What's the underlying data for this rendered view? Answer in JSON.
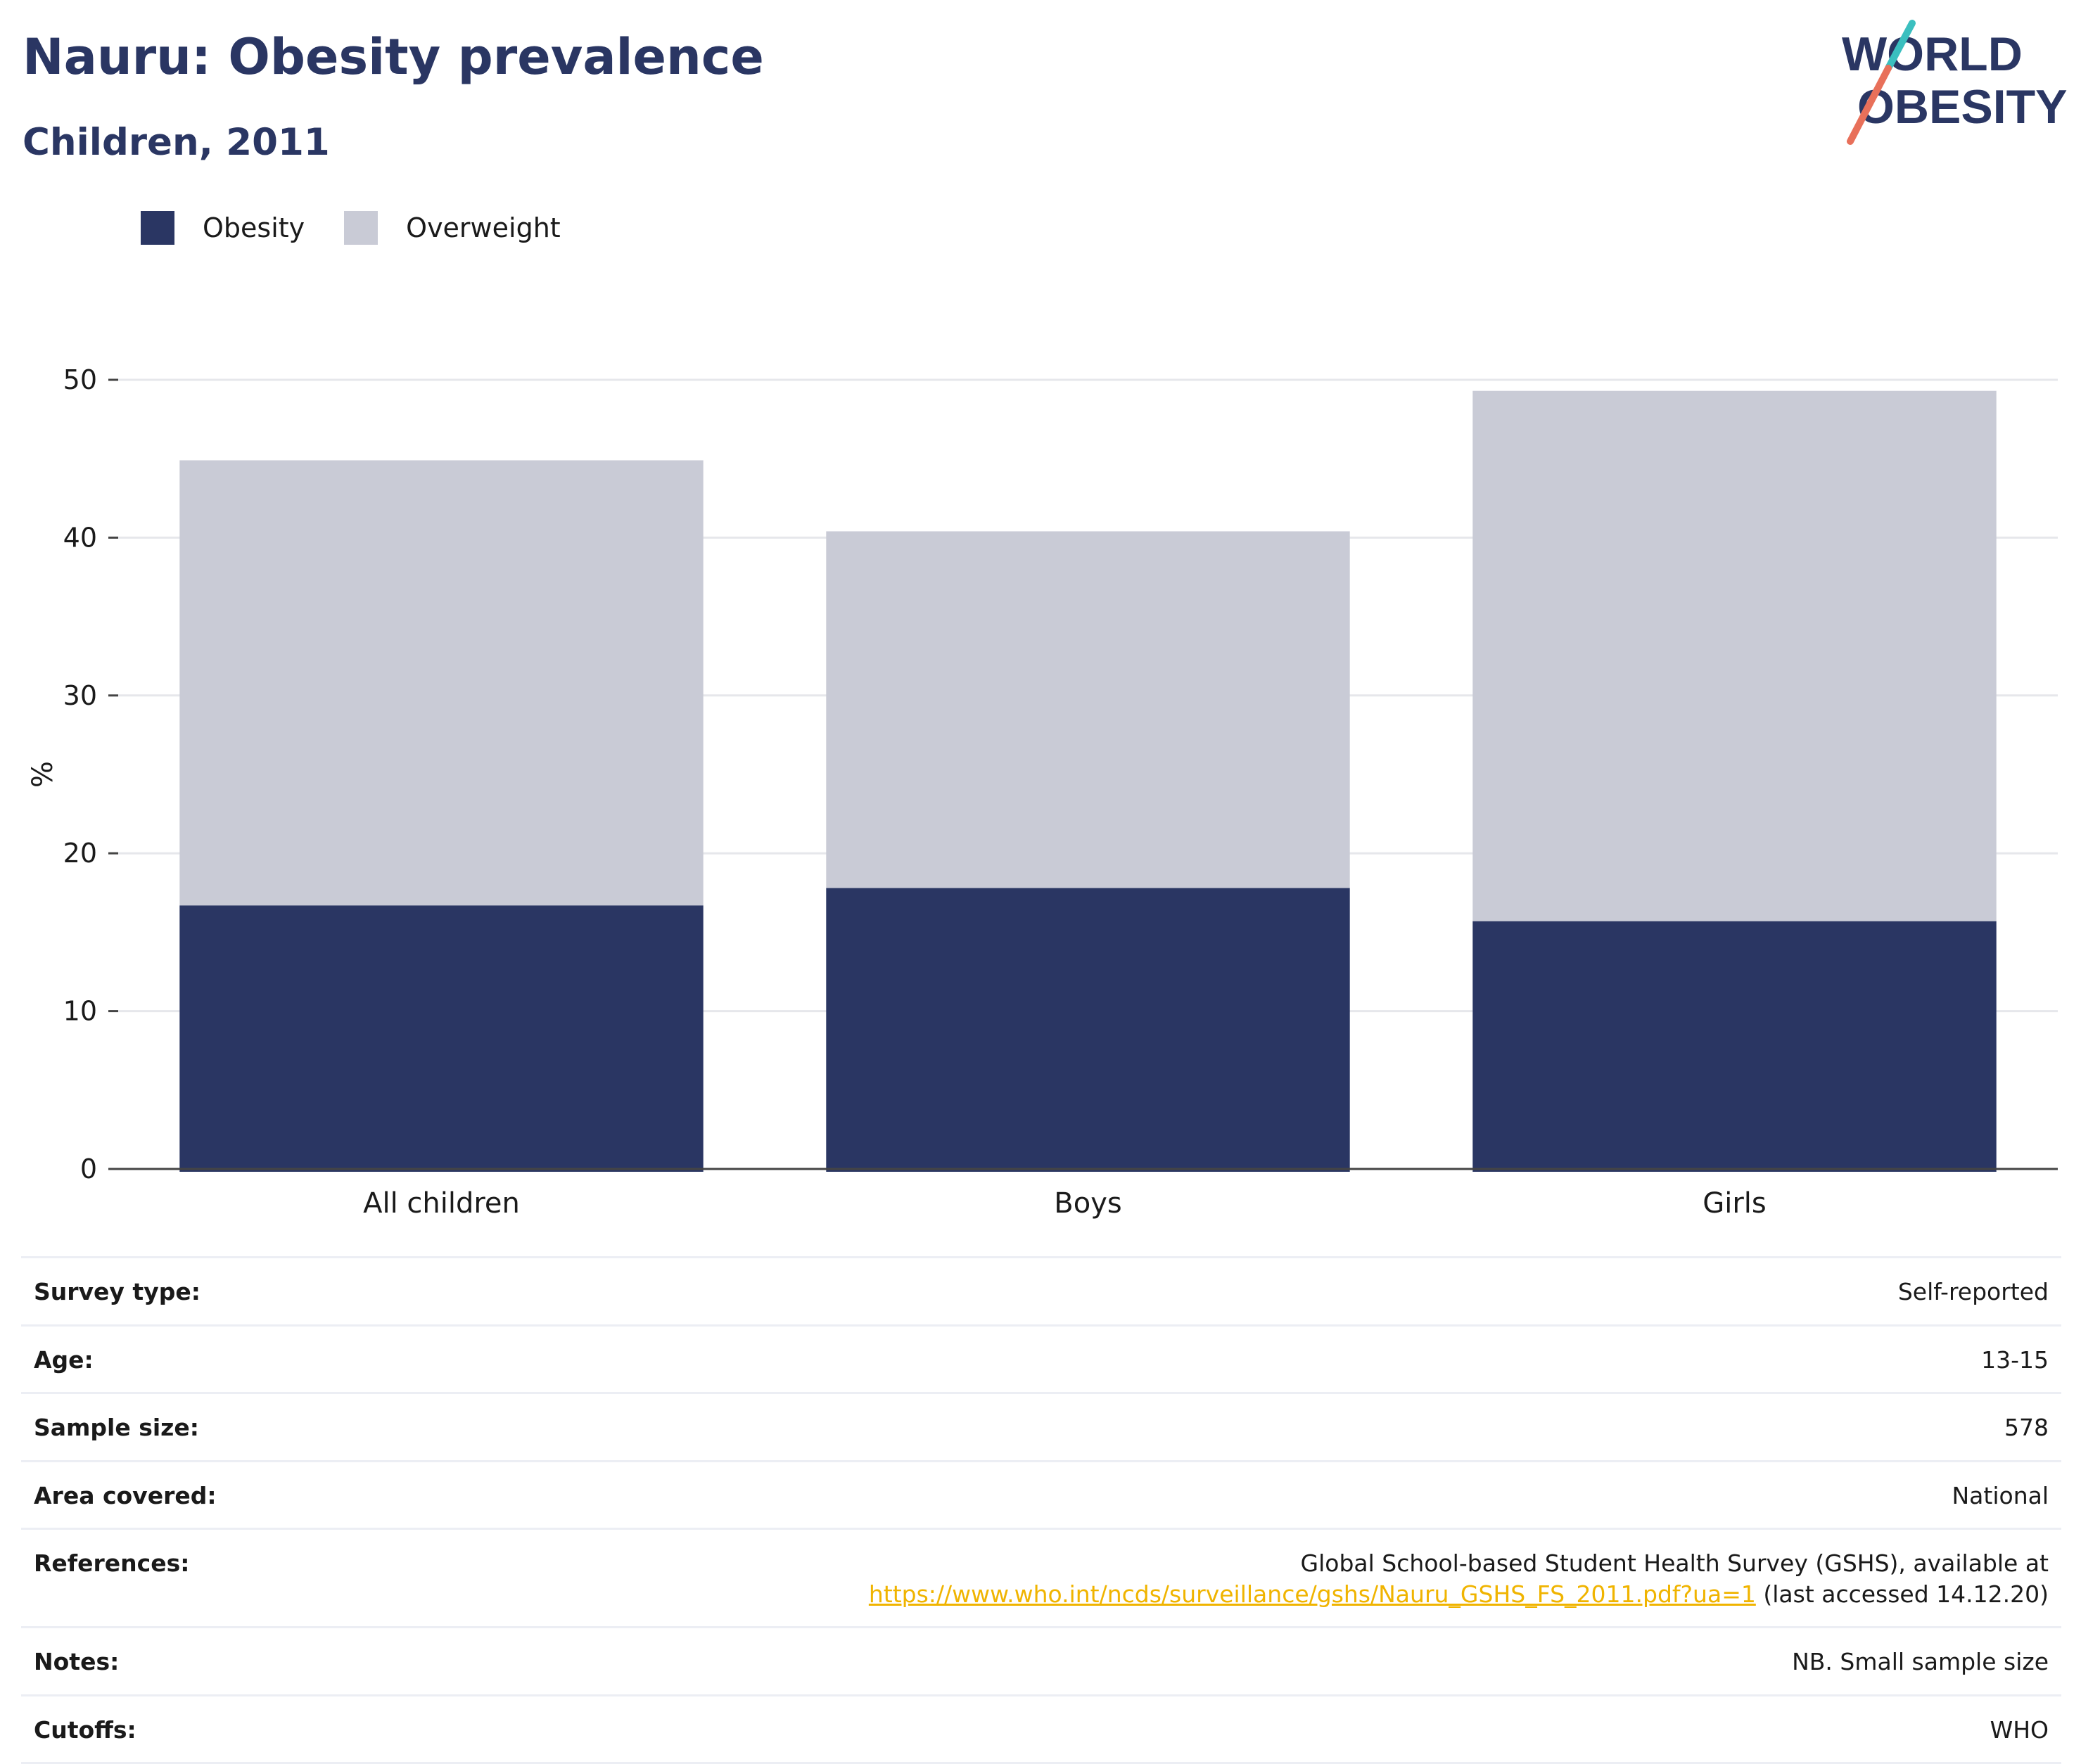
{
  "header": {
    "title": "Nauru: Obesity prevalence",
    "subtitle": "Children, 2011"
  },
  "logo": {
    "line1": "WORLD",
    "line2": "OBESITY",
    "colors": {
      "text": "#2a3663",
      "slash_top": "#3bbfbf",
      "slash_bottom": "#e8705a"
    }
  },
  "colors": {
    "obesity": "#2a3663",
    "overweight": "#c9cbd6",
    "grid": "#e6e7eb",
    "axis": "#444444",
    "link": "#f0b400"
  },
  "chart_data": {
    "type": "bar",
    "stacked": true,
    "categories": [
      "All children",
      "Boys",
      "Girls"
    ],
    "series": [
      {
        "name": "Obesity",
        "values": [
          16.7,
          17.8,
          15.7
        ]
      },
      {
        "name": "Overweight",
        "values": [
          28.2,
          22.6,
          33.6
        ]
      }
    ],
    "ylabel": "%",
    "xlabel": "",
    "ylim": [
      0,
      50
    ],
    "yticks": [
      0,
      10,
      20,
      30,
      40,
      50
    ],
    "grid": true,
    "legend_position": "top-left"
  },
  "info": {
    "rows": [
      {
        "key": "Survey type:",
        "value": "Self-reported"
      },
      {
        "key": "Age:",
        "value": "13-15"
      },
      {
        "key": "Sample size:",
        "value": "578"
      },
      {
        "key": "Area covered:",
        "value": "National"
      },
      {
        "key": "References:",
        "value_line1": "Global School-based Student Health Survey (GSHS), available at",
        "link": "https://www.who.int/ncds/surveillance/gshs/Nauru_GSHS_FS_2011.pdf?ua=1",
        "value_suffix": " (last accessed 14.12.20)"
      },
      {
        "key": "Notes:",
        "value": "NB. Small sample size"
      },
      {
        "key": "Cutoffs:",
        "value": "WHO"
      }
    ]
  }
}
